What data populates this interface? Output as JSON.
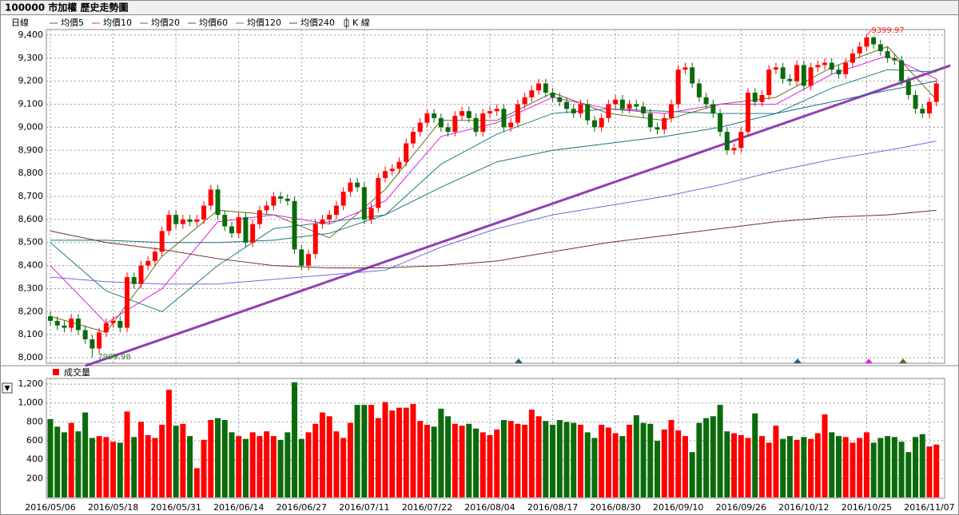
{
  "header": {
    "title": "100000 市加權  歷史走勢圖"
  },
  "chart_data": {
    "type": "candlestick",
    "period_label": "日線",
    "kline_label": "K 線",
    "categories": [
      "2016/05/06",
      null,
      null,
      null,
      null,
      null,
      null,
      null,
      null,
      "2016/05/18",
      null,
      null,
      null,
      null,
      null,
      null,
      null,
      null,
      "2016/05/31",
      null,
      null,
      null,
      null,
      null,
      null,
      null,
      null,
      "2016/06/14",
      null,
      null,
      null,
      null,
      null,
      null,
      null,
      null,
      "2016/06/27",
      null,
      null,
      null,
      null,
      null,
      null,
      null,
      null,
      "2016/07/11",
      null,
      null,
      null,
      null,
      null,
      null,
      null,
      null,
      "2016/07/22",
      null,
      null,
      null,
      null,
      null,
      null,
      null,
      null,
      "2016/08/04",
      null,
      null,
      null,
      null,
      null,
      null,
      null,
      null,
      "2016/08/17",
      null,
      null,
      null,
      null,
      null,
      null,
      null,
      null,
      "2016/08/30",
      null,
      null,
      null,
      null,
      null,
      null,
      null,
      null,
      "2016/09/10",
      null,
      null,
      null,
      null,
      null,
      null,
      null,
      null,
      "2016/09/26",
      null,
      null,
      null,
      null,
      null,
      null,
      null,
      null,
      "2016/10/12",
      null,
      null,
      null,
      null,
      null,
      null,
      null,
      null,
      "2016/10/25",
      null,
      null,
      null,
      null,
      null,
      null,
      null,
      null,
      "2016/11/07",
      null
    ],
    "open": [
      8180,
      8160,
      8140,
      8130,
      8170,
      8120,
      8080,
      8040,
      8110,
      8150,
      8160,
      8130,
      8350,
      8320,
      8400,
      8420,
      8460,
      8550,
      8620,
      8580,
      8600,
      8590,
      8600,
      8660,
      8730,
      8620,
      8570,
      8540,
      8610,
      8500,
      8580,
      8640,
      8660,
      8700,
      8690,
      8680,
      8470,
      8400,
      8450,
      8580,
      8600,
      8620,
      8660,
      8720,
      8760,
      8740,
      8600,
      8650,
      8780,
      8810,
      8820,
      8850,
      8930,
      8980,
      9020,
      9060,
      9040,
      9000,
      8980,
      9050,
      9070,
      9040,
      8980,
      9060,
      9070,
      9080,
      9000,
      9020,
      9100,
      9130,
      9160,
      9190,
      9150,
      9130,
      9110,
      9080,
      9060,
      9100,
      9030,
      9000,
      9040,
      9100,
      9120,
      9080,
      9100,
      9090,
      9060,
      9000,
      8990,
      9040,
      9100,
      9250,
      9260,
      9190,
      9130,
      9100,
      9060,
      8980,
      8900,
      8910,
      8980,
      9150,
      9110,
      9140,
      9250,
      9260,
      9210,
      9200,
      9270,
      9180,
      9260,
      9270,
      9280,
      9250,
      9230,
      9280,
      9320,
      9350,
      9390,
      9360,
      9330,
      9300,
      9290,
      9200,
      9140,
      9080,
      9060,
      9110
    ],
    "high": [
      8200,
      8180,
      8160,
      8190,
      8190,
      8140,
      8100,
      8130,
      8170,
      8180,
      8180,
      8370,
      8370,
      8420,
      8440,
      8480,
      8570,
      8640,
      8640,
      8620,
      8620,
      8620,
      8680,
      8750,
      8750,
      8640,
      8590,
      8630,
      8630,
      8600,
      8660,
      8680,
      8720,
      8720,
      8710,
      8700,
      8490,
      8470,
      8600,
      8620,
      8640,
      8680,
      8740,
      8780,
      8780,
      8760,
      8670,
      8800,
      8830,
      8840,
      8870,
      8950,
      9000,
      9040,
      9080,
      9080,
      9060,
      9020,
      9070,
      9090,
      9090,
      9060,
      9080,
      9090,
      9100,
      9100,
      9040,
      9120,
      9150,
      9180,
      9210,
      9210,
      9170,
      9150,
      9130,
      9100,
      9120,
      9120,
      9050,
      9060,
      9120,
      9140,
      9140,
      9120,
      9120,
      9110,
      9080,
      9020,
      9060,
      9120,
      9270,
      9280,
      9280,
      9210,
      9150,
      9120,
      9080,
      9000,
      8930,
      9000,
      9170,
      9170,
      9160,
      9270,
      9280,
      9280,
      9230,
      9290,
      9290,
      9280,
      9290,
      9300,
      9300,
      9270,
      9300,
      9340,
      9370,
      9399.97,
      9395,
      9380,
      9350,
      9320,
      9310,
      9220,
      9160,
      9100,
      9130,
      9210
    ],
    "low": [
      8140,
      8120,
      8110,
      8110,
      8100,
      8060,
      7999.98,
      8020,
      8090,
      8130,
      8110,
      8110,
      8300,
      8300,
      8380,
      8400,
      8440,
      8530,
      8560,
      8560,
      8570,
      8570,
      8580,
      8640,
      8600,
      8550,
      8520,
      8520,
      8480,
      8480,
      8560,
      8620,
      8640,
      8670,
      8660,
      8450,
      8380,
      8380,
      8430,
      8560,
      8580,
      8600,
      8640,
      8700,
      8720,
      8580,
      8580,
      8630,
      8760,
      8790,
      8800,
      8830,
      8910,
      8960,
      9000,
      9020,
      8980,
      8960,
      8960,
      9030,
      9020,
      8960,
      8960,
      9040,
      9050,
      8980,
      8980,
      9000,
      9080,
      9110,
      9140,
      9130,
      9110,
      9090,
      9060,
      9040,
      9040,
      9010,
      8980,
      8980,
      9020,
      9080,
      9060,
      9060,
      9070,
      9040,
      8980,
      8970,
      8970,
      9020,
      9080,
      9230,
      9170,
      9110,
      9080,
      9040,
      8960,
      8880,
      8880,
      8890,
      8960,
      9090,
      9090,
      9120,
      9230,
      9190,
      9180,
      9180,
      9160,
      9160,
      9240,
      9250,
      9230,
      9210,
      9210,
      9260,
      9300,
      9330,
      9340,
      9310,
      9280,
      9270,
      9180,
      9120,
      9060,
      9040,
      9040,
      9090
    ],
    "close": [
      8160,
      8140,
      8130,
      8170,
      8120,
      8080,
      8040,
      8110,
      8150,
      8160,
      8130,
      8350,
      8320,
      8400,
      8420,
      8460,
      8550,
      8620,
      8580,
      8600,
      8590,
      8600,
      8660,
      8730,
      8620,
      8570,
      8540,
      8610,
      8500,
      8580,
      8640,
      8660,
      8700,
      8690,
      8680,
      8470,
      8400,
      8450,
      8580,
      8600,
      8620,
      8660,
      8720,
      8760,
      8740,
      8600,
      8650,
      8780,
      8810,
      8820,
      8850,
      8930,
      8980,
      9020,
      9060,
      9040,
      9000,
      8980,
      9050,
      9070,
      9040,
      8980,
      9060,
      9070,
      9080,
      9000,
      9020,
      9100,
      9130,
      9160,
      9190,
      9150,
      9130,
      9110,
      9080,
      9060,
      9100,
      9030,
      9000,
      9040,
      9100,
      9120,
      9080,
      9100,
      9090,
      9060,
      9000,
      8990,
      9040,
      9100,
      9250,
      9260,
      9190,
      9130,
      9100,
      9060,
      8980,
      8900,
      8910,
      8980,
      9150,
      9110,
      9140,
      9250,
      9260,
      9210,
      9200,
      9270,
      9180,
      9260,
      9270,
      9280,
      9250,
      9230,
      9280,
      9320,
      9350,
      9390,
      9360,
      9330,
      9300,
      9290,
      9200,
      9140,
      9080,
      9060,
      9110,
      9190
    ],
    "up_color": "#ff0000",
    "down_color": "#0b6b0b",
    "high_label_color": "#ff2020",
    "low_label_color": "#2a8a2a",
    "ylim": [
      7976,
      9424
    ],
    "yticks": [
      {
        "value": 8000,
        "label": "8,000"
      },
      {
        "value": 8100,
        "label": "8,100"
      },
      {
        "value": 8200,
        "label": "8,200"
      },
      {
        "value": 8300,
        "label": "8,300"
      },
      {
        "value": 8400,
        "label": "8,400"
      },
      {
        "value": 8500,
        "label": "8,500"
      },
      {
        "value": 8600,
        "label": "8,600"
      },
      {
        "value": 8700,
        "label": "8,700"
      },
      {
        "value": 8800,
        "label": "8,800"
      },
      {
        "value": 8900,
        "label": "8,900"
      },
      {
        "value": 9000,
        "label": "9,000"
      },
      {
        "value": 9100,
        "label": "9,100"
      },
      {
        "value": 9200,
        "label": "9,200"
      },
      {
        "value": 9300,
        "label": "9,300"
      },
      {
        "value": 9400,
        "label": "9,400"
      }
    ],
    "grid": true,
    "ma": {
      "x": [
        0,
        8,
        16,
        24,
        32,
        40,
        48,
        56,
        64,
        72,
        80,
        88,
        96,
        104,
        112,
        120,
        127
      ],
      "series": [
        {
          "name": "均價5",
          "color": "#6b6b20",
          "values": [
            8180,
            8110,
            8440,
            8640,
            8620,
            8520,
            8730,
            9030,
            9030,
            9150,
            9060,
            9030,
            9100,
            9130,
            9260,
            9350,
            9120
          ]
        },
        {
          "name": "均價10",
          "color": "#e020e0",
          "values": [
            8400,
            8150,
            8300,
            8590,
            8620,
            8580,
            8680,
            8960,
            9020,
            9130,
            9080,
            9060,
            9100,
            9100,
            9230,
            9310,
            9210
          ]
        },
        {
          "name": "均價20",
          "color": "#208080",
          "values": [
            8500,
            8290,
            8200,
            8400,
            8560,
            8590,
            8620,
            8840,
            8970,
            9060,
            9080,
            9070,
            9060,
            9060,
            9170,
            9250,
            9240
          ]
        },
        {
          "name": "均價60",
          "color": "#1f6f7f",
          "values": [
            8510,
            8510,
            8500,
            8500,
            8510,
            8540,
            8620,
            8740,
            8850,
            8900,
            8930,
            8960,
            9000,
            9060,
            9110,
            9160,
            9200
          ]
        },
        {
          "name": "均價120",
          "color": "#6a6ae8",
          "values": [
            8350,
            8330,
            8320,
            8320,
            8340,
            8360,
            8380,
            8480,
            8560,
            8620,
            8660,
            8700,
            8750,
            8810,
            8860,
            8900,
            8940
          ]
        },
        {
          "name": "均價240",
          "color": "#703030",
          "values": [
            8550,
            8500,
            8470,
            8430,
            8400,
            8390,
            8390,
            8400,
            8420,
            8460,
            8500,
            8530,
            8560,
            8590,
            8610,
            8620,
            8640
          ]
        }
      ]
    },
    "trendline": {
      "x": [
        5,
        129
      ],
      "y": [
        7965,
        9268
      ],
      "color": "#9040b0"
    },
    "volume": {
      "type": "bar",
      "name": "成交量",
      "color": "#ff0000",
      "values": [
        830,
        750,
        690,
        790,
        700,
        900,
        630,
        650,
        640,
        590,
        580,
        910,
        640,
        800,
        660,
        630,
        770,
        1140,
        760,
        780,
        650,
        310,
        610,
        820,
        840,
        820,
        690,
        650,
        620,
        690,
        650,
        700,
        650,
        610,
        690,
        1220,
        620,
        690,
        780,
        900,
        860,
        700,
        630,
        790,
        980,
        980,
        980,
        840,
        1010,
        920,
        950,
        950,
        990,
        810,
        770,
        750,
        940,
        860,
        780,
        760,
        780,
        730,
        690,
        660,
        720,
        820,
        810,
        780,
        770,
        930,
        860,
        810,
        770,
        820,
        800,
        790,
        770,
        690,
        630,
        770,
        740,
        680,
        650,
        770,
        870,
        790,
        780,
        600,
        720,
        820,
        710,
        650,
        480,
        790,
        840,
        860,
        980,
        700,
        680,
        660,
        630,
        890,
        650,
        580,
        760,
        620,
        650,
        610,
        640,
        620,
        680,
        880,
        690,
        650,
        640,
        580,
        630,
        690,
        580,
        630,
        650,
        640,
        590,
        480,
        640,
        670,
        540,
        560
      ],
      "ylim": [
        0,
        1260
      ],
      "yticks": [
        200,
        400,
        600,
        800,
        {
          "value": 1000,
          "label": "1,000"
        },
        {
          "value": 1200,
          "label": "1,200"
        }
      ]
    }
  }
}
